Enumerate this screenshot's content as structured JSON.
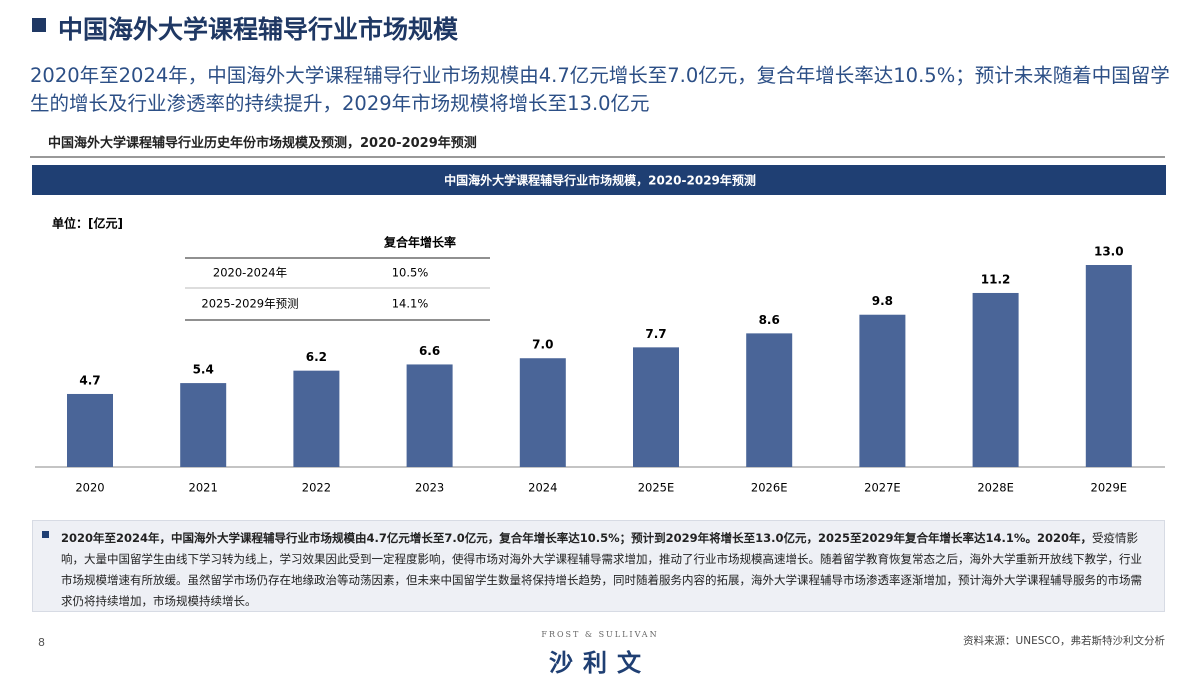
{
  "header": {
    "title": "中国海外大学课程辅导行业市场规模"
  },
  "summary": "2020年至2024年，中国海外大学课程辅导行业市场规模由4.7亿元增长至7.0亿元，复合年增长率达10.5%；预计未来随着中国留学生的增长及行业渗透率的持续提升，2029年市场规模将增长至13.0亿元",
  "section_title": "中国海外大学课程辅导行业历史年份市场规模及预测，2020-2029年预测",
  "chart_data": {
    "type": "bar",
    "title": "中国海外大学课程辅导行业市场规模，2020-2029年预测",
    "unit": "单位：[亿元]",
    "categories": [
      "2020",
      "2021",
      "2022",
      "2023",
      "2024",
      "2025E",
      "2026E",
      "2027E",
      "2028E",
      "2029E"
    ],
    "values": [
      4.7,
      5.4,
      6.2,
      6.6,
      7.0,
      7.7,
      8.6,
      9.8,
      11.2,
      13.0
    ],
    "value_labels": [
      "4.7",
      "5.4",
      "6.2",
      "6.6",
      "7.0",
      "7.7",
      "8.6",
      "9.8",
      "11.2",
      "13.0"
    ],
    "color": "#4a6598"
  },
  "cagr_table": {
    "header": "复合年增长率",
    "rows": [
      [
        "2020-2024年",
        "10.5%"
      ],
      [
        "2025-2029年预测",
        "14.1%"
      ]
    ]
  },
  "note": {
    "bold": "2020年至2024年，中国海外大学课程辅导行业市场规模由4.7亿元增长至7.0亿元，复合年增长率达10.5%；预计到2029年将增长至13.0亿元，2025至2029年复合年增长率达14.1%。2020年，",
    "text": "受疫情影响，大量中国留学生由线下学习转为线上，学习效果因此受到一定程度影响，使得市场对海外大学课程辅导需求增加，推动了行业市场规模高速增长。随着留学教育恢复常态之后，海外大学重新开放线下教学，行业市场规模增速有所放缓。虽然留学市场仍存在地缘政治等动荡因素，但未来中国留学生数量将保持增长趋势，同时随着服务内容的拓展，海外大学课程辅导市场渗透率逐渐增加，预计海外大学课程辅导服务的市场需求仍将持续增加，市场规模持续增长。"
  },
  "footer": {
    "page": "8",
    "logo_en": "FROST & SULLIVAN",
    "logo_cn": "沙利文",
    "source": "资料来源：UNESCO，弗若斯特沙利文分析"
  }
}
